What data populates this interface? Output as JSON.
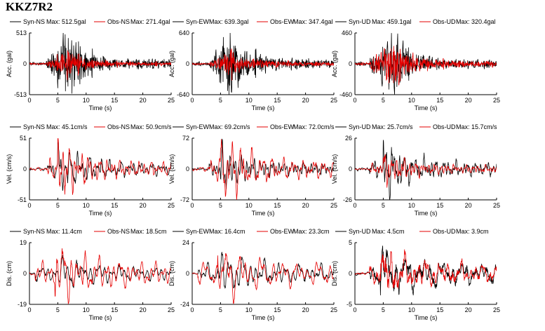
{
  "page": {
    "station_code": "KKZ7R2"
  },
  "colors": {
    "syn": "#000000",
    "obs": "#e60000",
    "axis": "#000000"
  },
  "chart_data": [
    {
      "type": "line",
      "quantity": "acc",
      "component": "NS",
      "ylabel": "Acc. (gal)",
      "xlabel": "Time (s)",
      "ylim": [
        -513,
        513
      ],
      "xlim": [
        0,
        25
      ],
      "xticks": [
        0,
        5,
        10,
        15,
        20,
        25
      ],
      "yticks": [
        {
          "value": 513,
          "label": "513"
        },
        {
          "value": 0,
          "label": "0"
        },
        {
          "value": -513,
          "label": "-513"
        }
      ],
      "series": [
        {
          "name": "Syn-NS",
          "legend": "Max: 512.5gal",
          "max": 512.5
        },
        {
          "name": "Obs-NS",
          "legend": "Max: 271.4gal",
          "max": 271.4
        }
      ]
    },
    {
      "type": "line",
      "quantity": "acc",
      "component": "EW",
      "ylabel": "Acc. (gal)",
      "xlabel": "Time (s)",
      "ylim": [
        -640,
        640
      ],
      "xlim": [
        0,
        25
      ],
      "xticks": [
        0,
        5,
        10,
        15,
        20,
        25
      ],
      "yticks": [
        {
          "value": 640,
          "label": "640"
        },
        {
          "value": 0,
          "label": "0"
        },
        {
          "value": -640,
          "label": "-640"
        }
      ],
      "series": [
        {
          "name": "Syn-EW",
          "legend": "Max: 639.3gal",
          "max": 639.3
        },
        {
          "name": "Obs-EW",
          "legend": "Max: 347.4gal",
          "max": 347.4
        }
      ]
    },
    {
      "type": "line",
      "quantity": "acc",
      "component": "UD",
      "ylabel": "Acc. (gal)",
      "xlabel": "Time (s)",
      "ylim": [
        -460,
        460
      ],
      "xlim": [
        0,
        25
      ],
      "xticks": [
        0,
        5,
        10,
        15,
        20,
        25
      ],
      "yticks": [
        {
          "value": 460,
          "label": "460"
        },
        {
          "value": 0,
          "label": "0"
        },
        {
          "value": -460,
          "label": "-460"
        }
      ],
      "series": [
        {
          "name": "Syn-UD",
          "legend": "Max: 459.1gal",
          "max": 459.1
        },
        {
          "name": "Obs-UD",
          "legend": "Max: 320.4gal",
          "max": 320.4
        }
      ]
    },
    {
      "type": "line",
      "quantity": "vel",
      "component": "NS",
      "ylabel": "Vel. (cm/s)",
      "xlabel": "Time (s)",
      "ylim": [
        -51,
        51
      ],
      "xlim": [
        0,
        25
      ],
      "xticks": [
        0,
        5,
        10,
        15,
        20,
        25
      ],
      "yticks": [
        {
          "value": 51,
          "label": "51"
        },
        {
          "value": 0,
          "label": "0"
        },
        {
          "value": -51,
          "label": "-51"
        }
      ],
      "series": [
        {
          "name": "Syn-NS",
          "legend": "Max: 45.1cm/s",
          "max": 45.1
        },
        {
          "name": "Obs-NS",
          "legend": "Max: 50.9cm/s",
          "max": 50.9
        }
      ]
    },
    {
      "type": "line",
      "quantity": "vel",
      "component": "EW",
      "ylabel": "Vel. (cm/s)",
      "xlabel": "Time (s)",
      "ylim": [
        -72,
        72
      ],
      "xlim": [
        0,
        25
      ],
      "xticks": [
        0,
        5,
        10,
        15,
        20,
        25
      ],
      "yticks": [
        {
          "value": 72,
          "label": "72"
        },
        {
          "value": 0,
          "label": "0"
        },
        {
          "value": -72,
          "label": "-72"
        }
      ],
      "series": [
        {
          "name": "Syn-EW",
          "legend": "Max: 69.2cm/s",
          "max": 69.2
        },
        {
          "name": "Obs-EW",
          "legend": "Max: 72.0cm/s",
          "max": 72.0
        }
      ]
    },
    {
      "type": "line",
      "quantity": "vel",
      "component": "UD",
      "ylabel": "Vel. (cm/s)",
      "xlabel": "Time (s)",
      "ylim": [
        -26,
        26
      ],
      "xlim": [
        0,
        25
      ],
      "xticks": [
        0,
        5,
        10,
        15,
        20,
        25
      ],
      "yticks": [
        {
          "value": 26,
          "label": "26"
        },
        {
          "value": 0,
          "label": "0"
        },
        {
          "value": -26,
          "label": "-26"
        }
      ],
      "series": [
        {
          "name": "Syn-UD",
          "legend": "Max: 25.7cm/s",
          "max": 25.7
        },
        {
          "name": "Obs-UD",
          "legend": "Max: 15.7cm/s",
          "max": 15.7
        }
      ]
    },
    {
      "type": "line",
      "quantity": "dis",
      "component": "NS",
      "ylabel": "Dis. (cm)",
      "xlabel": "Time (s)",
      "ylim": [
        -19,
        19
      ],
      "xlim": [
        0,
        25
      ],
      "xticks": [
        0,
        5,
        10,
        15,
        20,
        25
      ],
      "yticks": [
        {
          "value": 19,
          "label": "19"
        },
        {
          "value": 0,
          "label": "0"
        },
        {
          "value": -19,
          "label": "-19"
        }
      ],
      "series": [
        {
          "name": "Syn-NS",
          "legend": "Max: 11.4cm",
          "max": 11.4
        },
        {
          "name": "Obs-NS",
          "legend": "Max: 18.5cm",
          "max": 18.5
        }
      ]
    },
    {
      "type": "line",
      "quantity": "dis",
      "component": "EW",
      "ylabel": "Dis. (cm)",
      "xlabel": "Time (s)",
      "ylim": [
        -24,
        24
      ],
      "xlim": [
        0,
        25
      ],
      "xticks": [
        0,
        5,
        10,
        15,
        20,
        25
      ],
      "yticks": [
        {
          "value": 24,
          "label": "24"
        },
        {
          "value": 0,
          "label": "0"
        },
        {
          "value": -24,
          "label": "-24"
        }
      ],
      "series": [
        {
          "name": "Syn-EW",
          "legend": "Max: 16.4cm",
          "max": 16.4
        },
        {
          "name": "Obs-EW",
          "legend": "Max: 23.3cm",
          "max": 23.3
        }
      ]
    },
    {
      "type": "line",
      "quantity": "dis",
      "component": "UD",
      "ylabel": "Dis. (cm)",
      "xlabel": "Time (s)",
      "ylim": [
        -5,
        5
      ],
      "xlim": [
        0,
        25
      ],
      "xticks": [
        0,
        5,
        10,
        15,
        20,
        25
      ],
      "yticks": [
        {
          "value": 5,
          "label": "5"
        },
        {
          "value": 0,
          "label": "0"
        },
        {
          "value": -5,
          "label": "-5"
        }
      ],
      "series": [
        {
          "name": "Syn-UD",
          "legend": "Max: 4.5cm",
          "max": 4.5
        },
        {
          "name": "Obs-UD",
          "legend": "Max: 3.9cm",
          "max": 3.9
        }
      ]
    }
  ]
}
